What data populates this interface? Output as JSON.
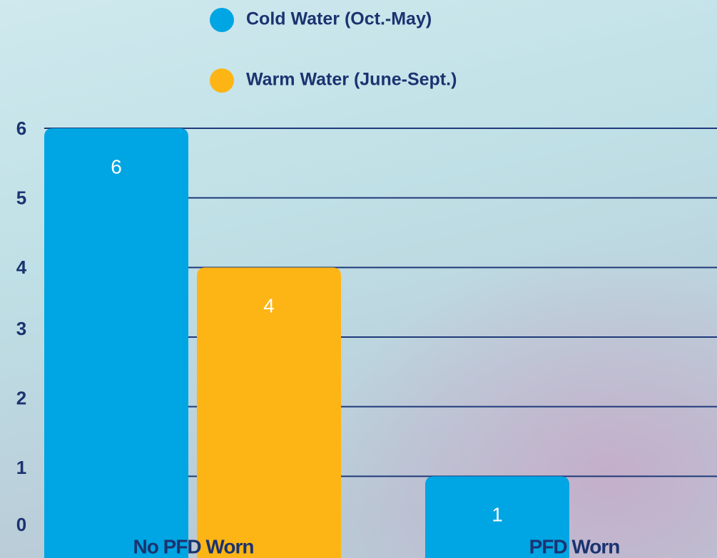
{
  "chart_data": {
    "type": "bar",
    "categories": [
      "No PFD Worn",
      "PFD Worn"
    ],
    "series": [
      {
        "name": "Cold Water (Oct.-May)",
        "color": "#00a5e3",
        "values": [
          6,
          1
        ]
      },
      {
        "name": "Warm Water (June-Sept.)",
        "color": "#fdb515",
        "values": [
          4,
          null
        ]
      }
    ],
    "ylim": [
      0,
      6
    ],
    "yticks": [
      0,
      1,
      2,
      3,
      4,
      5,
      6
    ],
    "grid": true
  }
}
